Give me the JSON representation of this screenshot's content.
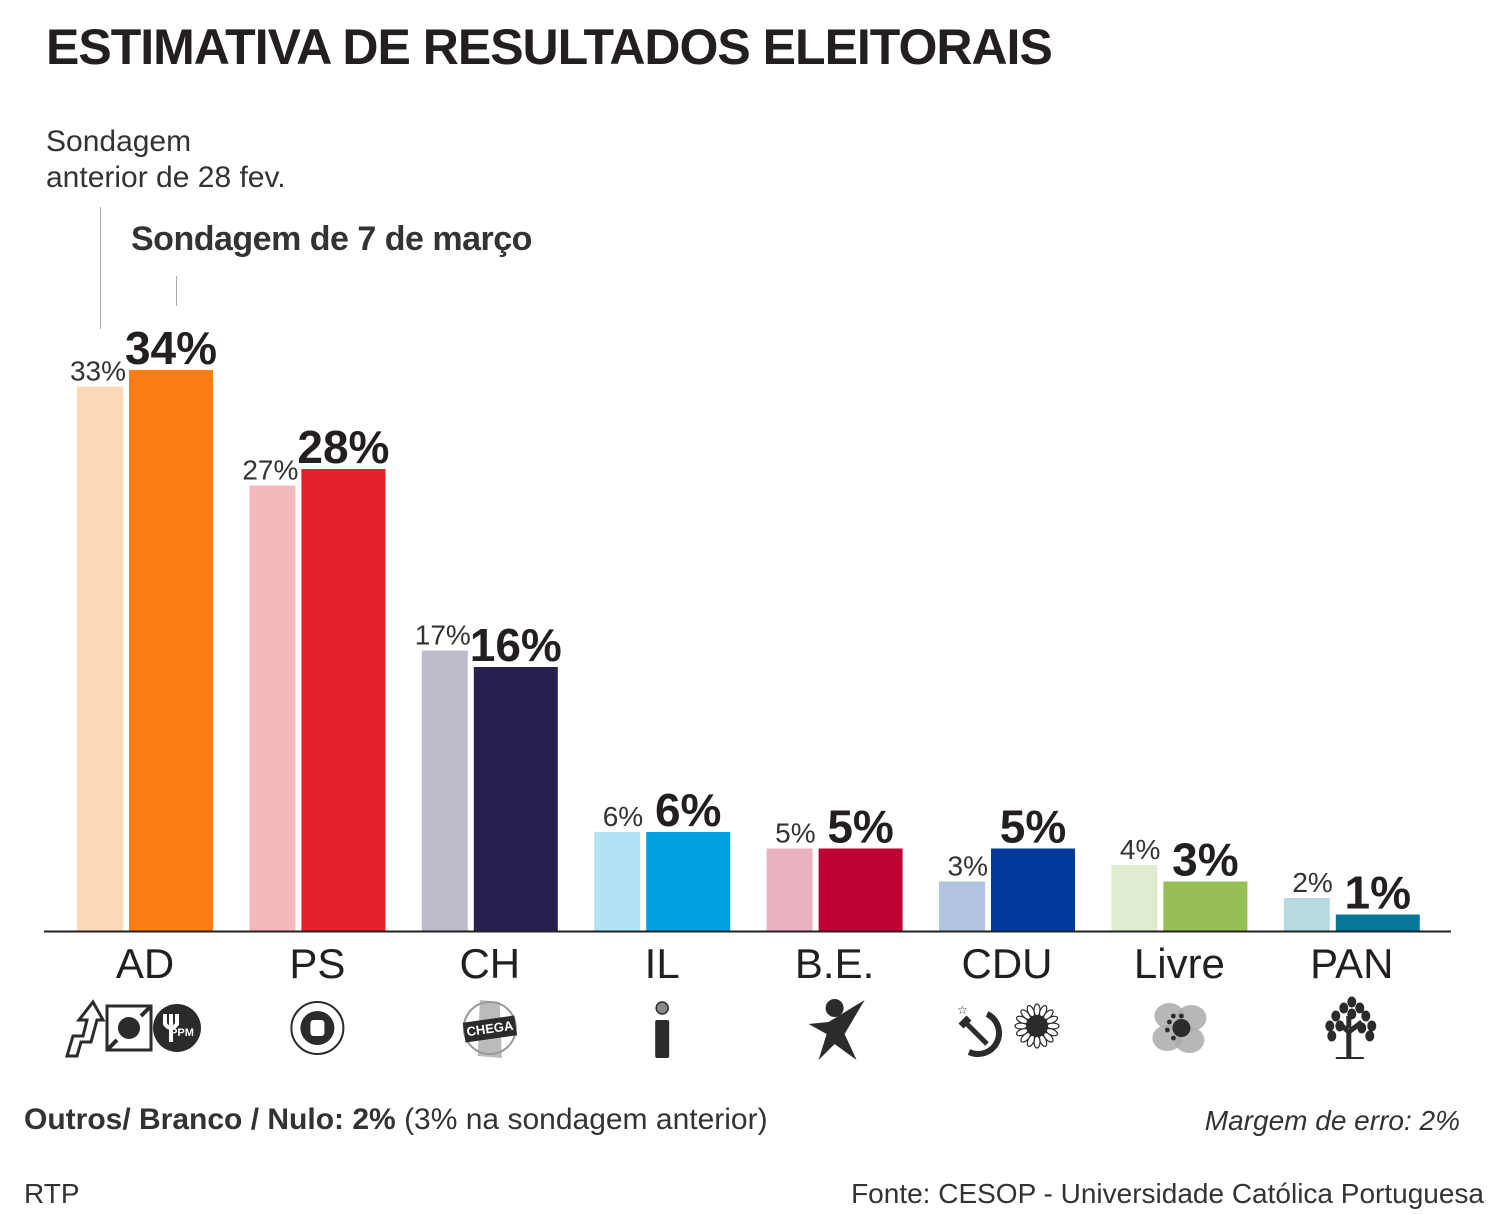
{
  "title": "ESTIMATIVA DE RESULTADOS ELEITORAIS",
  "notes": {
    "previous_line1": "Sondagem",
    "previous_line2": "anterior de 28 fev.",
    "current": "Sondagem de 7 de março"
  },
  "chart_data": {
    "type": "bar",
    "title": "ESTIMATIVA DE RESULTADOS ELEITORAIS",
    "xlabel": "",
    "ylabel": "",
    "ylim": [
      0,
      34
    ],
    "grid": false,
    "categories": [
      "AD",
      "PS",
      "CH",
      "IL",
      "B.E.",
      "CDU",
      "Livre",
      "PAN"
    ],
    "series": [
      {
        "name": "Sondagem anterior de 28 fev.",
        "values": [
          33,
          27,
          17,
          6,
          5,
          3,
          4,
          2
        ],
        "labels": [
          "33%",
          "27%",
          "17%",
          "6%",
          "5%",
          "3%",
          "4%",
          "2%"
        ],
        "colors": [
          "#fdd8b8",
          "#f5b8bc",
          "#bdbccb",
          "#b3e2f4",
          "#ebb3c1",
          "#b2c3e0",
          "#dfecd0",
          "#b5dae2"
        ]
      },
      {
        "name": "Sondagem de 7 de março",
        "values": [
          34,
          28,
          16,
          6,
          5,
          5,
          3,
          1
        ],
        "labels": [
          "34%",
          "28%",
          "16%",
          "6%",
          "5%",
          "5%",
          "3%",
          "1%"
        ],
        "colors": [
          "#fb7f12",
          "#e2202a",
          "#252050",
          "#00a0e1",
          "#be0234",
          "#003a9b",
          "#98be56",
          "#08769b"
        ]
      }
    ],
    "party_icons": [
      "ad-coalition-logos-icon",
      "ps-fist-logo-icon",
      "chega-logo-icon",
      "il-logo-icon",
      "be-star-logo-icon",
      "cdu-hammer-sickle-sunflower-icon",
      "livre-poppy-logo-icon",
      "pan-tree-logo-icon"
    ]
  },
  "footer": {
    "others_label": "Outros/ Branco / Nulo:",
    "others_value": "2%",
    "others_previous": "(3% na sondagem anterior)",
    "margin_of_error": "Margem de erro: 2%",
    "publisher": "RTP",
    "source": "Fonte: CESOP - Universidade Católica Portuguesa"
  }
}
